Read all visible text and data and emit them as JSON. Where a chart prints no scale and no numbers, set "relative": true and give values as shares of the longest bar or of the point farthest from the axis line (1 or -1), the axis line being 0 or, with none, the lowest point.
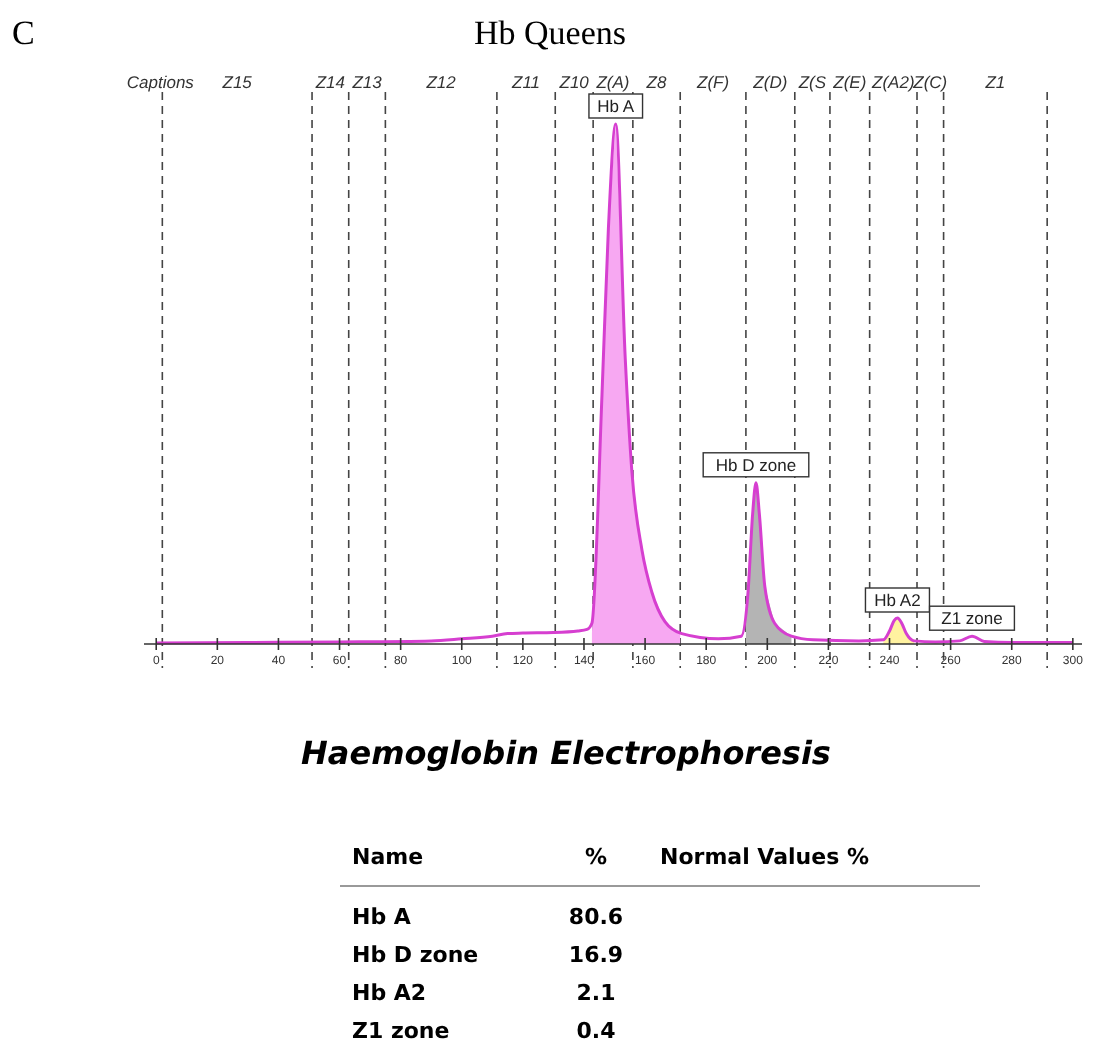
{
  "chart_data": [
    {
      "type": "line",
      "title": "Hb Queens",
      "relative": true,
      "tick_labels": "x",
      "grid": false,
      "xlim": [
        -4,
        303
      ],
      "xticks": [
        0,
        20,
        40,
        60,
        80,
        100,
        120,
        140,
        160,
        180,
        200,
        220,
        240,
        260,
        280,
        300
      ],
      "series": [
        {
          "type": "area",
          "color": "#f7a8f2",
          "x": [
            142.6,
            145.9,
            148,
            150.4,
            153.5,
            155.7,
            159,
            162.2,
            166.5,
            171.5
          ],
          "values": [
            0.02,
            0.48,
            0.8,
            1,
            0.55,
            0.33,
            0.18,
            0.1,
            0.043,
            0.02
          ]
        },
        {
          "type": "area",
          "color": "#b4b4b4",
          "x": [
            193,
            193.7,
            195.2,
            196.3,
            197.4,
            199.2,
            202.4,
            207.9
          ],
          "values": [
            0.07,
            0.1,
            0.25,
            0.31,
            0.25,
            0.11,
            0.04,
            0.015
          ]
        },
        {
          "type": "area",
          "color": "#fff2a0",
          "x": [
            238,
            240,
            241.5,
            242.6,
            244,
            245.5,
            248
          ],
          "values": [
            0.008,
            0.025,
            0.045,
            0.05,
            0.04,
            0.02,
            0.006
          ]
        },
        {
          "type": "line",
          "color": "#d63fd0",
          "x": [
            0,
            30,
            60,
            90,
            100,
            110,
            115,
            120,
            130,
            138,
            141,
            142.6,
            145.9,
            148,
            150.4,
            153.5,
            155.7,
            159,
            162.2,
            166.5,
            172,
            184,
            191.5,
            193.7,
            195.2,
            196.3,
            197.4,
            199.2,
            202.4,
            207.9,
            215,
            230,
            238,
            240,
            241.5,
            242.6,
            244,
            245.5,
            248,
            255,
            263,
            267,
            271,
            280,
            300
          ],
          "values": [
            0.002,
            0.003,
            0.004,
            0.006,
            0.01,
            0.015,
            0.02,
            0.021,
            0.022,
            0.025,
            0.028,
            0.04,
            0.48,
            0.8,
            1,
            0.55,
            0.33,
            0.18,
            0.1,
            0.043,
            0.02,
            0.01,
            0.015,
            0.1,
            0.25,
            0.31,
            0.25,
            0.11,
            0.04,
            0.015,
            0.008,
            0.006,
            0.008,
            0.025,
            0.045,
            0.05,
            0.04,
            0.02,
            0.006,
            0.004,
            0.006,
            0.015,
            0.005,
            0.003,
            0.003
          ]
        }
      ],
      "ref_lines": [
        {
          "axis": "x",
          "value": 2,
          "line_style": "dashed"
        },
        {
          "axis": "x",
          "value": 51,
          "line_style": "dashed"
        },
        {
          "axis": "x",
          "value": 63,
          "line_style": "dashed"
        },
        {
          "axis": "x",
          "value": 75,
          "line_style": "dashed"
        },
        {
          "axis": "x",
          "value": 111.5,
          "line_style": "dashed"
        },
        {
          "axis": "x",
          "value": 130.6,
          "line_style": "dashed"
        },
        {
          "axis": "x",
          "value": 143,
          "line_style": "dashed"
        },
        {
          "axis": "x",
          "value": 156,
          "line_style": "dashed"
        },
        {
          "axis": "x",
          "value": 171.5,
          "line_style": "dashed"
        },
        {
          "axis": "x",
          "value": 193,
          "line_style": "dashed"
        },
        {
          "axis": "x",
          "value": 209,
          "line_style": "dashed"
        },
        {
          "axis": "x",
          "value": 220.5,
          "line_style": "dashed"
        },
        {
          "axis": "x",
          "value": 233.5,
          "line_style": "dashed"
        },
        {
          "axis": "x",
          "value": 249,
          "line_style": "dashed"
        },
        {
          "axis": "x",
          "value": 257.7,
          "line_style": "dashed"
        },
        {
          "axis": "x",
          "value": 291.6,
          "line_style": "dashed"
        }
      ],
      "annotations": [
        "C",
        "Captions",
        "Z15",
        "Z14",
        "Z13",
        "Z12",
        "Z11",
        "Z10",
        "Z(A)",
        "Z8",
        "Z(F)",
        "Z(D)",
        "Z(S",
        "Z(E)",
        "Z(A2)",
        "Z(C)",
        "Z1",
        {
          "text": "Hb A",
          "x": 150.4,
          "y": 1
        },
        {
          "text": "Hb D zone",
          "x": 196.3,
          "y": 0.31
        },
        {
          "text": "Hb A2",
          "x": 242.6,
          "y": 0.05
        },
        {
          "text": "Z1 zone",
          "x": 267,
          "y": 0.015
        }
      ]
    },
    {
      "type": "other",
      "title": "Haemoglobin Electrophoresis",
      "annotations": [
        "Name",
        "%",
        "Normal Values %"
      ],
      "categories": [
        "Hb A",
        "Hb D zone",
        "Hb A2",
        "Z1 zone"
      ],
      "values": [
        80.6,
        16.9,
        2.1,
        0.4
      ],
      "data_labels": true
    }
  ]
}
